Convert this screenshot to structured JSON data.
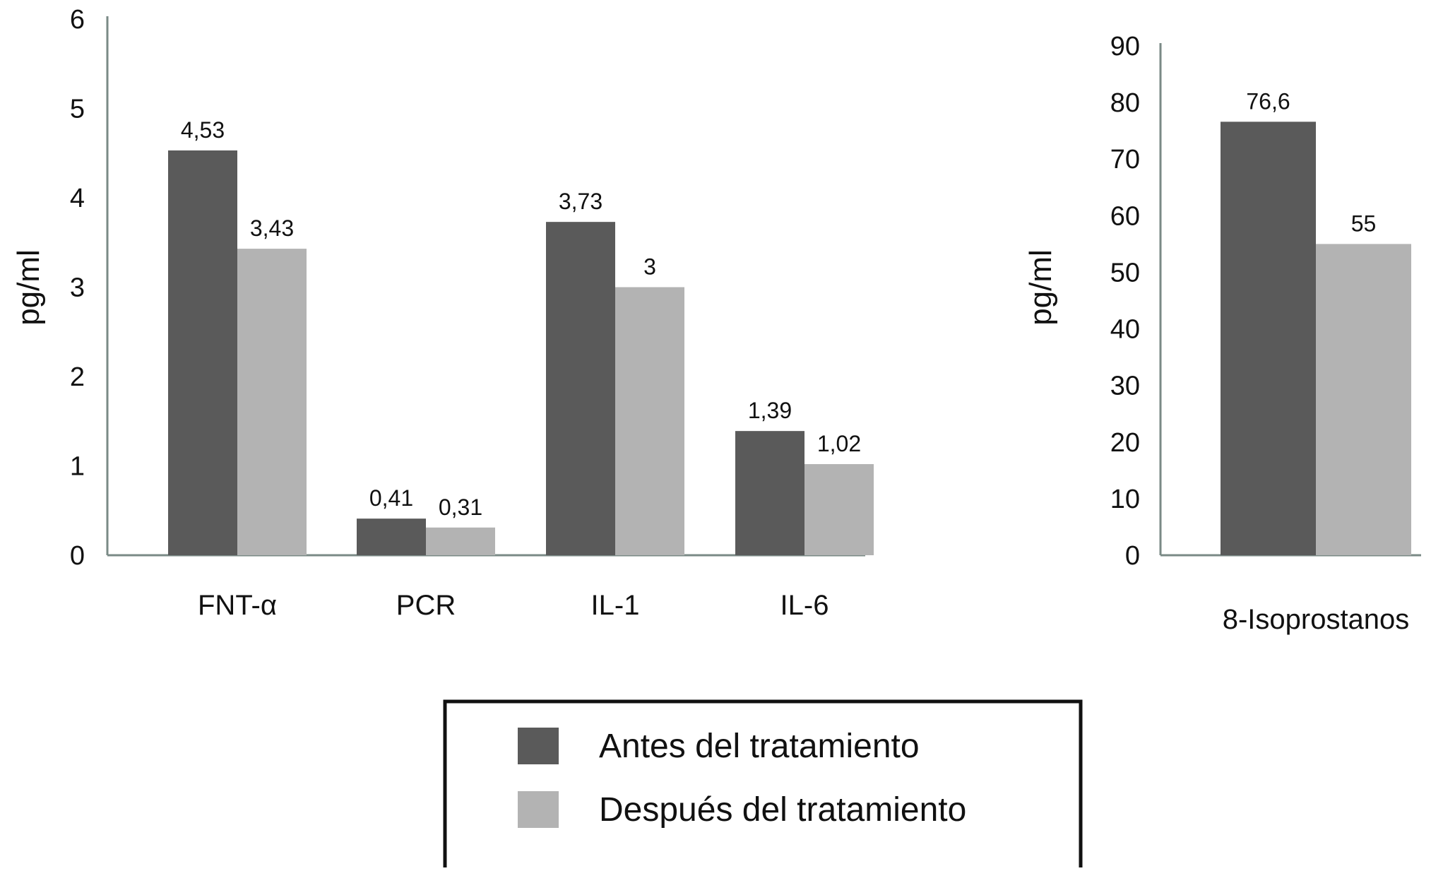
{
  "chart_data": [
    {
      "type": "bar",
      "ylabel": "pg/ml",
      "xlabel": "",
      "ylim": [
        0,
        6
      ],
      "yticks": [
        0,
        1,
        2,
        3,
        4,
        5,
        6
      ],
      "categories": [
        "FNT-α",
        "PCR",
        "IL-1",
        "IL-6"
      ],
      "series": [
        {
          "name": "Antes del tratamiento",
          "values": [
            4.53,
            0.41,
            3.73,
            1.39
          ],
          "labels": [
            "4,53",
            "0,41",
            "3,73",
            "1,39"
          ]
        },
        {
          "name": "Después del tratamiento",
          "values": [
            3.43,
            0.31,
            3,
            1.02
          ],
          "labels": [
            "3,43",
            "0,31",
            "3",
            "1,02"
          ]
        }
      ]
    },
    {
      "type": "bar",
      "ylabel": "pg/ml",
      "xlabel": "",
      "ylim": [
        0,
        90
      ],
      "yticks": [
        0,
        10,
        20,
        30,
        40,
        50,
        60,
        70,
        80,
        90
      ],
      "categories": [
        "8-Isoprostanos"
      ],
      "series": [
        {
          "name": "Antes del tratamiento",
          "values": [
            76.6
          ],
          "labels": [
            "76,6"
          ]
        },
        {
          "name": "Después del tratamiento",
          "values": [
            55
          ],
          "labels": [
            "55"
          ]
        }
      ]
    }
  ],
  "legend": {
    "placement": "bottom-center",
    "items": [
      {
        "label": "Antes del tratamiento",
        "color": "#5a5a5a"
      },
      {
        "label": "Después del tratamiento",
        "color": "#b3b3b3"
      }
    ]
  },
  "colors": {
    "before": "#5a5a5a",
    "after": "#b3b3b3",
    "axis": "#7a8a86"
  }
}
